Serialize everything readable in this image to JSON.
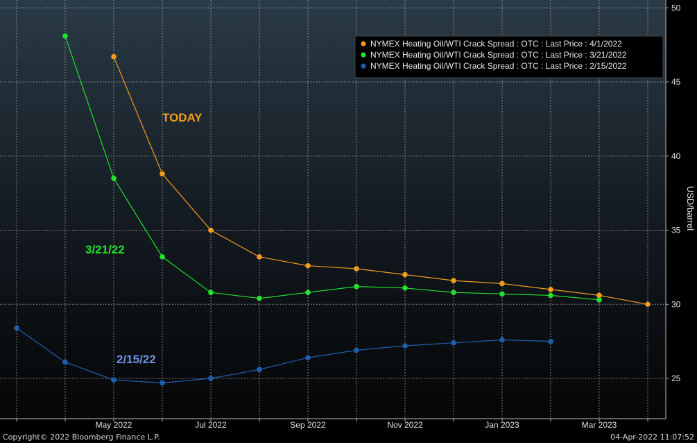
{
  "chart_data": {
    "type": "line",
    "ylabel": "USD/barrel",
    "ylim": [
      22.5,
      50
    ],
    "yticks": [
      25,
      30,
      35,
      40,
      45,
      50
    ],
    "xticks": [
      "May 2022",
      "Jul 2022",
      "Sep 2022",
      "Nov 2022",
      "Jan 2023",
      "Mar 2023"
    ],
    "x_range": [
      "2022-03",
      "2023-04"
    ],
    "grid": true,
    "legend_position": "top-right",
    "series": [
      {
        "name": "NYMEX Heating Oil/WTI Crack Spread : OTC : Last Price : 4/1/2022",
        "color": "#f39c1e",
        "annotation": "TODAY",
        "x": [
          "2022-05",
          "2022-06",
          "2022-07",
          "2022-08",
          "2022-09",
          "2022-10",
          "2022-11",
          "2022-12",
          "2023-01",
          "2023-02",
          "2023-03",
          "2023-04"
        ],
        "y": [
          46.7,
          38.8,
          35.0,
          33.2,
          32.6,
          32.4,
          32.0,
          31.6,
          31.4,
          31.0,
          30.6,
          30.0
        ]
      },
      {
        "name": "NYMEX Heating Oil/WTI Crack Spread : OTC : Last Price : 3/21/2022",
        "color": "#22e22e",
        "annotation": "3/21/22",
        "x": [
          "2022-04",
          "2022-05",
          "2022-06",
          "2022-07",
          "2022-08",
          "2022-09",
          "2022-10",
          "2022-11",
          "2022-12",
          "2023-01",
          "2023-02",
          "2023-03"
        ],
        "y": [
          48.1,
          38.5,
          33.2,
          30.8,
          30.4,
          30.8,
          31.2,
          31.1,
          30.8,
          30.7,
          30.6,
          30.3
        ]
      },
      {
        "name": "NYMEX Heating Oil/WTI Crack Spread : OTC : Last Price : 2/15/2022",
        "color": "#1f5fb0",
        "annotation": "2/15/22",
        "x": [
          "2022-03",
          "2022-04",
          "2022-05",
          "2022-06",
          "2022-07",
          "2022-08",
          "2022-09",
          "2022-10",
          "2022-11",
          "2022-12",
          "2023-01",
          "2023-02"
        ],
        "y": [
          28.4,
          26.1,
          24.9,
          24.7,
          25.0,
          25.6,
          26.4,
          26.9,
          27.2,
          27.4,
          27.6,
          27.5
        ]
      }
    ]
  },
  "footer": {
    "copyright": "Copyright© 2022 Bloomberg Finance L.P.",
    "timestamp": "04-Apr-2022 11:07:52"
  }
}
